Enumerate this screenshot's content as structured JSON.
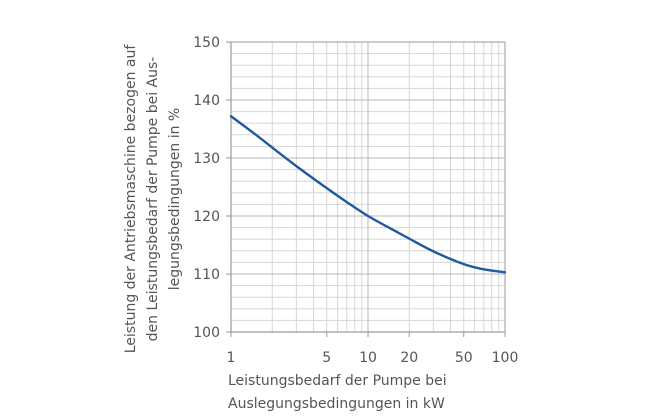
{
  "chart_data": {
    "type": "line",
    "title": "",
    "xlabel_lines": [
      "Leistungsbedarf der Pumpe bei",
      "Auslegungsbedingungen in kW"
    ],
    "ylabel_lines": [
      "Leistung der Antriebsmaschine bezogen auf",
      "den Leistungsbedarf der Pumpe bei Aus-",
      "legungsbedingungen in %"
    ],
    "x_scale": "log",
    "xlim": [
      1,
      100
    ],
    "ylim": [
      100,
      150
    ],
    "x_ticks": [
      1,
      5,
      10,
      20,
      50,
      100
    ],
    "x_tick_labels": [
      "1",
      "5",
      "10",
      "20",
      "50",
      "100"
    ],
    "y_ticks": [
      100,
      110,
      120,
      130,
      140,
      150
    ],
    "y_tick_labels": [
      "100",
      "110",
      "120",
      "130",
      "140",
      "150"
    ],
    "grid": true,
    "series": [
      {
        "color": "#1f5a9e",
        "x": [
          1,
          1.5,
          2,
          3,
          5,
          7,
          10,
          15,
          20,
          30,
          50,
          70,
          100
        ],
        "y": [
          137.2,
          134.1,
          131.8,
          128.6,
          124.8,
          122.4,
          120.0,
          117.7,
          116.1,
          113.9,
          111.7,
          110.8,
          110.3
        ]
      }
    ],
    "colors": {
      "axis": "#9a9a9a",
      "grid": "#d6d6d6",
      "text": "#555555"
    }
  }
}
